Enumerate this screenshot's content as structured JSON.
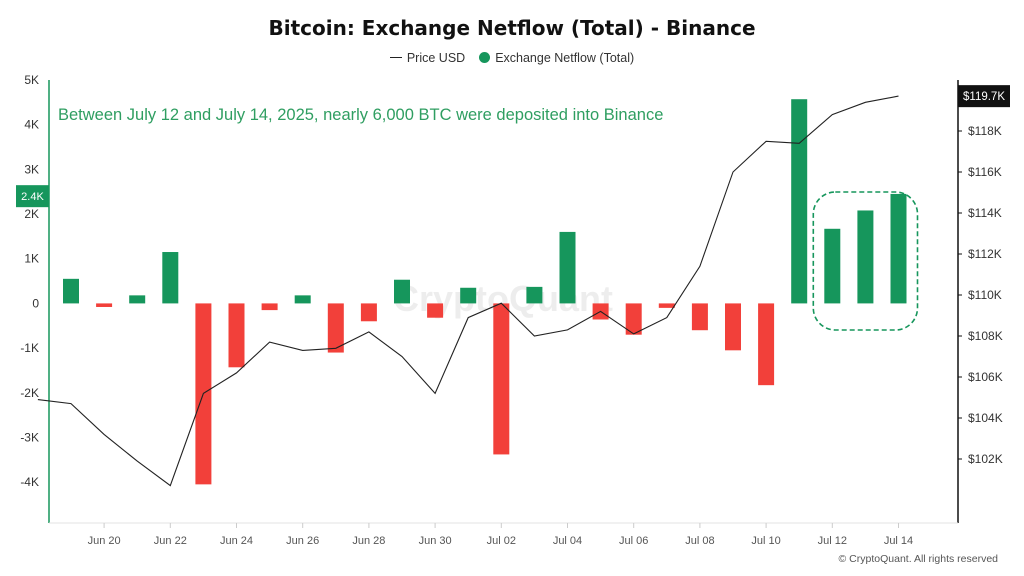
{
  "chart_data": {
    "type": "bar",
    "title": "Bitcoin: Exchange Netflow (Total) - Binance",
    "annotation": "Between July 12 and July 14, 2025, nearly 6,000 BTC were deposited into Binance",
    "watermark": "CryptoQuant",
    "footer": "© CryptoQuant. All rights reserved",
    "legend": [
      "Price USD",
      "Exchange Netflow (Total)"
    ],
    "legend_placement": "top-center",
    "colors": {
      "positive": "#16965c",
      "negative": "#f2403a",
      "price_line": "#222222",
      "annotation": "#2f9e61",
      "marker": "#16965c"
    },
    "x_tick_labels": [
      "Jun 20",
      "Jun 22",
      "Jun 24",
      "Jun 26",
      "Jun 28",
      "Jun 30",
      "Jul 02",
      "Jul 04",
      "Jul 06",
      "Jul 08",
      "Jul 10",
      "Jul 12",
      "Jul 14"
    ],
    "y_left": {
      "label": "Exchange Netflow (Total)",
      "ticks": [
        "5K",
        "4K",
        "3K",
        "2K",
        "1K",
        "0",
        "-1K",
        "-2K",
        "-3K",
        "-4K"
      ],
      "ylim": [
        -4400,
        5000
      ],
      "current_marker": "2.4K",
      "current_value": 2400
    },
    "y_right": {
      "label": "Price USD",
      "ticks": [
        "$118K",
        "$116K",
        "$114K",
        "$112K",
        "$110K",
        "$108K",
        "$106K",
        "$104K",
        "$102K"
      ],
      "ylim": [
        100000,
        120000
      ],
      "current_marker": "$119.7K",
      "current_value": 119700
    },
    "grid": false,
    "netflow": {
      "name": "Exchange Netflow (Total)",
      "dates": [
        "Jun 19",
        "Jun 20",
        "Jun 21",
        "Jun 22",
        "Jun 23",
        "Jun 24",
        "Jun 25",
        "Jun 26",
        "Jun 27",
        "Jun 28",
        "Jun 29",
        "Jun 30",
        "Jul 01",
        "Jul 02",
        "Jul 03",
        "Jul 04",
        "Jul 05",
        "Jul 06",
        "Jul 07",
        "Jul 08",
        "Jul 09",
        "Jul 10",
        "Jul 11",
        "Jul 12",
        "Jul 13",
        "Jul 14"
      ],
      "values": [
        550,
        -80,
        180,
        1150,
        -4050,
        -1430,
        -150,
        180,
        -1100,
        -400,
        530,
        -320,
        350,
        -3380,
        370,
        1600,
        -360,
        -700,
        -100,
        -600,
        -1050,
        -1830,
        4570,
        1670,
        2080,
        2450
      ]
    },
    "price": {
      "name": "Price USD",
      "dates": [
        "Jun 18",
        "Jun 19",
        "Jun 20",
        "Jun 21",
        "Jun 22",
        "Jun 23",
        "Jun 24",
        "Jun 25",
        "Jun 26",
        "Jun 27",
        "Jun 28",
        "Jun 29",
        "Jun 30",
        "Jul 01",
        "Jul 02",
        "Jul 03",
        "Jul 04",
        "Jul 05",
        "Jul 06",
        "Jul 07",
        "Jul 08",
        "Jul 09",
        "Jul 10",
        "Jul 11",
        "Jul 12",
        "Jul 13",
        "Jul 14"
      ],
      "values": [
        104900,
        104700,
        103200,
        101900,
        100700,
        105200,
        106200,
        107700,
        107300,
        107400,
        108200,
        107000,
        105200,
        108900,
        109600,
        108000,
        108300,
        109200,
        108100,
        108900,
        111400,
        116000,
        117500,
        117400,
        118800,
        119400,
        119700
      ]
    }
  }
}
